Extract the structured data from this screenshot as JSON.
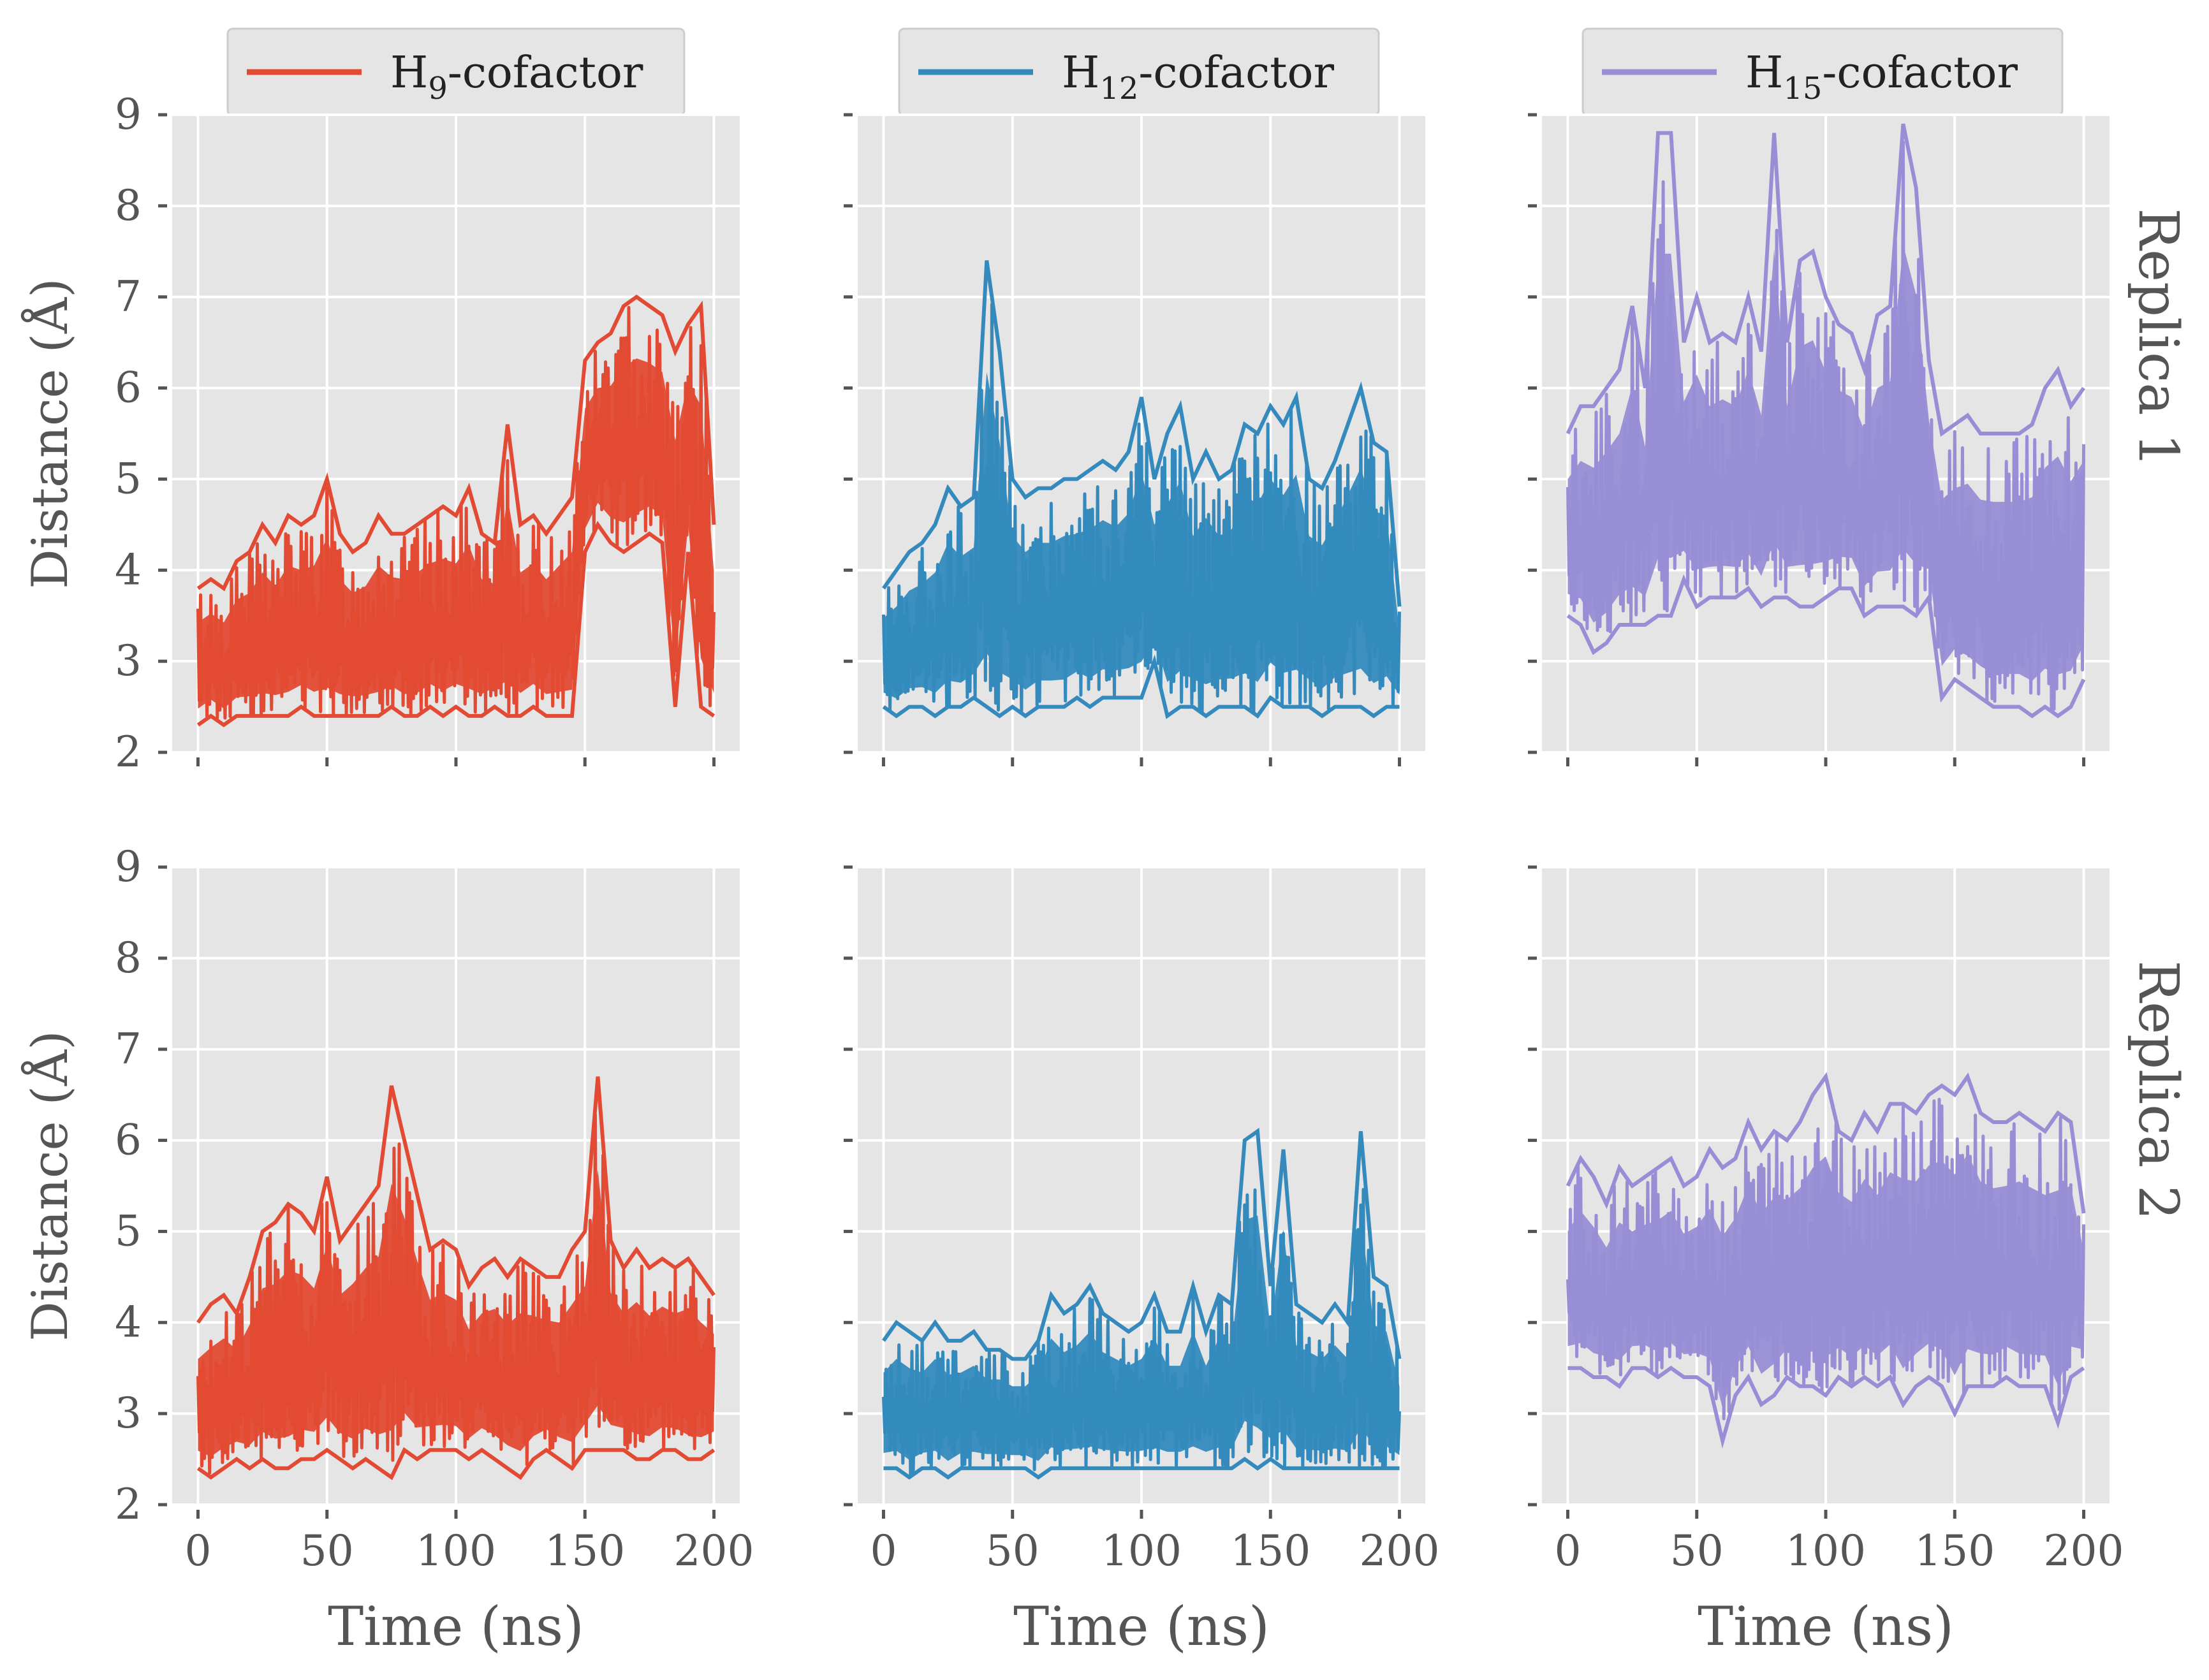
{
  "chart_data": [
    {
      "type": "line",
      "panel": "replica-1-h9",
      "row_label": "Replica 1",
      "series": [
        {
          "name": "H9-cofactor",
          "color": "#E24A33",
          "x": [
            0,
            5,
            10,
            15,
            20,
            25,
            30,
            35,
            40,
            45,
            50,
            55,
            60,
            65,
            70,
            75,
            80,
            85,
            90,
            95,
            100,
            105,
            110,
            115,
            120,
            125,
            130,
            135,
            140,
            145,
            150,
            155,
            160,
            165,
            170,
            175,
            180,
            185,
            190,
            195,
            200
          ],
          "low": [
            2.3,
            2.4,
            2.3,
            2.4,
            2.4,
            2.4,
            2.4,
            2.4,
            2.5,
            2.4,
            2.4,
            2.4,
            2.4,
            2.4,
            2.4,
            2.5,
            2.4,
            2.4,
            2.5,
            2.4,
            2.5,
            2.4,
            2.4,
            2.5,
            2.4,
            2.4,
            2.5,
            2.4,
            2.4,
            2.4,
            4.2,
            4.5,
            4.3,
            4.2,
            4.3,
            4.4,
            4.3,
            2.5,
            4.2,
            2.5,
            2.4
          ],
          "high": [
            3.8,
            3.9,
            3.8,
            4.1,
            4.2,
            4.5,
            4.3,
            4.6,
            4.5,
            4.6,
            5.0,
            4.4,
            4.2,
            4.3,
            4.6,
            4.4,
            4.4,
            4.5,
            4.6,
            4.7,
            4.6,
            4.9,
            4.4,
            4.3,
            5.6,
            4.5,
            4.6,
            4.4,
            4.6,
            4.8,
            6.3,
            6.5,
            6.6,
            6.9,
            7.0,
            6.9,
            6.8,
            6.4,
            6.7,
            6.9,
            4.5
          ]
        }
      ],
      "xlabel": "",
      "ylabel": "Distance (Å)",
      "xlim": [
        -10,
        210
      ],
      "ylim": [
        2,
        9
      ],
      "xticks": [
        0,
        50,
        100,
        150,
        200
      ],
      "yticks": [
        2,
        3,
        4,
        5,
        6,
        7,
        8,
        9
      ],
      "grid": true
    },
    {
      "type": "line",
      "panel": "replica-1-h12",
      "series": [
        {
          "name": "H12-cofactor",
          "color": "#348ABD",
          "x": [
            0,
            5,
            10,
            15,
            20,
            25,
            30,
            35,
            40,
            45,
            50,
            55,
            60,
            65,
            70,
            75,
            80,
            85,
            90,
            95,
            100,
            105,
            110,
            115,
            120,
            125,
            130,
            135,
            140,
            145,
            150,
            155,
            160,
            165,
            170,
            175,
            180,
            185,
            190,
            195,
            200
          ],
          "low": [
            2.5,
            2.4,
            2.5,
            2.5,
            2.4,
            2.5,
            2.5,
            2.6,
            2.5,
            2.4,
            2.5,
            2.4,
            2.5,
            2.5,
            2.5,
            2.6,
            2.5,
            2.6,
            2.6,
            2.6,
            2.6,
            3.0,
            2.4,
            2.5,
            2.5,
            2.4,
            2.5,
            2.5,
            2.5,
            2.4,
            2.6,
            2.5,
            2.5,
            2.5,
            2.4,
            2.5,
            2.5,
            2.5,
            2.4,
            2.5,
            2.5
          ],
          "high": [
            3.8,
            4.0,
            4.2,
            4.3,
            4.5,
            4.9,
            4.7,
            4.8,
            7.4,
            6.4,
            5.0,
            4.8,
            4.9,
            4.9,
            5.0,
            5.0,
            5.1,
            5.2,
            5.1,
            5.3,
            5.9,
            5.0,
            5.5,
            5.8,
            5.0,
            5.3,
            5.0,
            5.1,
            5.6,
            5.5,
            5.8,
            5.6,
            5.9,
            5.0,
            4.9,
            5.2,
            5.6,
            6.0,
            5.4,
            5.3,
            3.6
          ]
        }
      ],
      "xlabel": "",
      "ylabel": "",
      "xlim": [
        -10,
        210
      ],
      "ylim": [
        2,
        9
      ],
      "xticks": [
        0,
        50,
        100,
        150,
        200
      ],
      "yticks": [
        2,
        3,
        4,
        5,
        6,
        7,
        8,
        9
      ],
      "grid": true
    },
    {
      "type": "line",
      "panel": "replica-1-h15",
      "series": [
        {
          "name": "H15-cofactor",
          "color": "#988ED5",
          "x": [
            0,
            5,
            10,
            15,
            20,
            25,
            30,
            35,
            40,
            45,
            50,
            55,
            60,
            65,
            70,
            75,
            80,
            85,
            90,
            95,
            100,
            105,
            110,
            115,
            120,
            125,
            130,
            135,
            140,
            145,
            150,
            155,
            160,
            165,
            170,
            175,
            180,
            185,
            190,
            195,
            200
          ],
          "low": [
            3.5,
            3.4,
            3.1,
            3.2,
            3.4,
            3.4,
            3.4,
            3.5,
            3.5,
            3.9,
            3.6,
            3.7,
            3.7,
            3.7,
            3.8,
            3.6,
            3.7,
            3.7,
            3.6,
            3.6,
            3.7,
            3.8,
            3.8,
            3.5,
            3.6,
            3.6,
            3.6,
            3.5,
            3.7,
            2.6,
            2.8,
            2.7,
            2.6,
            2.5,
            2.5,
            2.5,
            2.4,
            2.5,
            2.4,
            2.5,
            2.8
          ],
          "high": [
            5.5,
            5.8,
            5.8,
            6.0,
            6.2,
            6.9,
            6.0,
            8.8,
            8.8,
            6.5,
            7.0,
            6.5,
            6.6,
            6.5,
            7.0,
            6.4,
            8.8,
            6.5,
            7.4,
            7.5,
            7.0,
            6.7,
            6.6,
            6.2,
            6.8,
            6.9,
            8.9,
            8.2,
            6.3,
            5.5,
            5.6,
            5.7,
            5.5,
            5.5,
            5.5,
            5.5,
            5.6,
            6.0,
            6.2,
            5.8,
            6.0
          ]
        }
      ],
      "xlabel": "",
      "ylabel": "",
      "xlim": [
        -10,
        210
      ],
      "ylim": [
        2,
        9
      ],
      "xticks": [
        0,
        50,
        100,
        150,
        200
      ],
      "yticks": [
        2,
        3,
        4,
        5,
        6,
        7,
        8,
        9
      ],
      "grid": true
    },
    {
      "type": "line",
      "panel": "replica-2-h9",
      "row_label": "Replica 2",
      "series": [
        {
          "name": "H9-cofactor",
          "color": "#E24A33",
          "x": [
            0,
            5,
            10,
            15,
            20,
            25,
            30,
            35,
            40,
            45,
            50,
            55,
            60,
            65,
            70,
            75,
            80,
            85,
            90,
            95,
            100,
            105,
            110,
            115,
            120,
            125,
            130,
            135,
            140,
            145,
            150,
            155,
            160,
            165,
            170,
            175,
            180,
            185,
            190,
            195,
            200
          ],
          "low": [
            2.4,
            2.3,
            2.4,
            2.5,
            2.4,
            2.5,
            2.4,
            2.4,
            2.5,
            2.5,
            2.6,
            2.5,
            2.4,
            2.5,
            2.4,
            2.3,
            2.6,
            2.5,
            2.6,
            2.6,
            2.6,
            2.5,
            2.6,
            2.5,
            2.4,
            2.3,
            2.5,
            2.6,
            2.5,
            2.4,
            2.6,
            2.6,
            2.6,
            2.6,
            2.5,
            2.5,
            2.6,
            2.6,
            2.5,
            2.5,
            2.6
          ],
          "high": [
            4.0,
            4.2,
            4.3,
            4.1,
            4.5,
            5.0,
            5.1,
            5.3,
            5.2,
            5.0,
            5.6,
            4.9,
            5.1,
            5.3,
            5.5,
            6.6,
            6.0,
            5.4,
            4.8,
            4.9,
            4.8,
            4.4,
            4.6,
            4.7,
            4.5,
            4.7,
            4.6,
            4.5,
            4.5,
            4.8,
            5.0,
            6.7,
            4.9,
            4.6,
            4.8,
            4.6,
            4.7,
            4.6,
            4.7,
            4.5,
            4.3
          ]
        }
      ],
      "xlabel": "Time (ns)",
      "ylabel": "Distance (Å)",
      "xlim": [
        -10,
        210
      ],
      "ylim": [
        2,
        9
      ],
      "xticks": [
        0,
        50,
        100,
        150,
        200
      ],
      "yticks": [
        2,
        3,
        4,
        5,
        6,
        7,
        8,
        9
      ],
      "grid": true
    },
    {
      "type": "line",
      "panel": "replica-2-h12",
      "series": [
        {
          "name": "H12-cofactor",
          "color": "#348ABD",
          "x": [
            0,
            5,
            10,
            15,
            20,
            25,
            30,
            35,
            40,
            45,
            50,
            55,
            60,
            65,
            70,
            75,
            80,
            85,
            90,
            95,
            100,
            105,
            110,
            115,
            120,
            125,
            130,
            135,
            140,
            145,
            150,
            155,
            160,
            165,
            170,
            175,
            180,
            185,
            190,
            195,
            200
          ],
          "low": [
            2.4,
            2.4,
            2.3,
            2.4,
            2.4,
            2.3,
            2.4,
            2.4,
            2.4,
            2.4,
            2.4,
            2.4,
            2.3,
            2.4,
            2.4,
            2.4,
            2.4,
            2.4,
            2.4,
            2.4,
            2.4,
            2.4,
            2.4,
            2.4,
            2.4,
            2.4,
            2.4,
            2.4,
            2.5,
            2.4,
            2.5,
            2.4,
            2.4,
            2.4,
            2.4,
            2.4,
            2.4,
            2.4,
            2.4,
            2.4,
            2.4
          ],
          "high": [
            3.8,
            4.0,
            3.9,
            3.8,
            4.0,
            3.8,
            3.8,
            3.9,
            3.7,
            3.7,
            3.6,
            3.6,
            3.8,
            4.3,
            4.1,
            4.2,
            4.4,
            4.1,
            4.0,
            3.9,
            4.0,
            4.3,
            3.9,
            3.9,
            4.4,
            3.9,
            4.3,
            4.2,
            6.0,
            6.1,
            4.4,
            5.9,
            4.2,
            4.1,
            4.0,
            4.2,
            4.0,
            6.1,
            4.5,
            4.4,
            3.6
          ]
        }
      ],
      "xlabel": "Time (ns)",
      "ylabel": "",
      "xlim": [
        -10,
        210
      ],
      "ylim": [
        2,
        9
      ],
      "xticks": [
        0,
        50,
        100,
        150,
        200
      ],
      "yticks": [
        2,
        3,
        4,
        5,
        6,
        7,
        8,
        9
      ],
      "grid": true
    },
    {
      "type": "line",
      "panel": "replica-2-h15",
      "series": [
        {
          "name": "H15-cofactor",
          "color": "#988ED5",
          "x": [
            0,
            5,
            10,
            15,
            20,
            25,
            30,
            35,
            40,
            45,
            50,
            55,
            60,
            65,
            70,
            75,
            80,
            85,
            90,
            95,
            100,
            105,
            110,
            115,
            120,
            125,
            130,
            135,
            140,
            145,
            150,
            155,
            160,
            165,
            170,
            175,
            180,
            185,
            190,
            195,
            200
          ],
          "low": [
            3.5,
            3.5,
            3.4,
            3.4,
            3.3,
            3.5,
            3.5,
            3.4,
            3.5,
            3.4,
            3.4,
            3.3,
            2.7,
            3.2,
            3.4,
            3.1,
            3.2,
            3.4,
            3.3,
            3.3,
            3.2,
            3.4,
            3.3,
            3.4,
            3.3,
            3.4,
            3.1,
            3.3,
            3.4,
            3.3,
            3.0,
            3.3,
            3.3,
            3.3,
            3.4,
            3.3,
            3.3,
            3.3,
            2.9,
            3.4,
            3.5
          ],
          "high": [
            5.5,
            5.8,
            5.6,
            5.3,
            5.7,
            5.5,
            5.6,
            5.7,
            5.8,
            5.5,
            5.6,
            5.9,
            5.7,
            5.8,
            6.2,
            5.9,
            6.1,
            6.0,
            6.2,
            6.5,
            6.7,
            6.1,
            6.0,
            6.3,
            6.1,
            6.4,
            6.4,
            6.3,
            6.5,
            6.6,
            6.5,
            6.7,
            6.3,
            6.2,
            6.2,
            6.3,
            6.2,
            6.1,
            6.3,
            6.2,
            5.2
          ]
        }
      ],
      "xlabel": "Time (ns)",
      "ylabel": "",
      "xlim": [
        -10,
        210
      ],
      "ylim": [
        2,
        9
      ],
      "xticks": [
        0,
        50,
        100,
        150,
        200
      ],
      "yticks": [
        2,
        3,
        4,
        5,
        6,
        7,
        8,
        9
      ],
      "grid": true
    }
  ],
  "legend": [
    {
      "base": "H",
      "sub": "9",
      "suffix": "-cofactor",
      "color": "#E24A33"
    },
    {
      "base": "H",
      "sub": "12",
      "suffix": "-cofactor",
      "color": "#348ABD"
    },
    {
      "base": "H",
      "sub": "15",
      "suffix": "-cofactor",
      "color": "#988ED5"
    }
  ],
  "row_labels": [
    "Replica 1",
    "Replica 2"
  ]
}
